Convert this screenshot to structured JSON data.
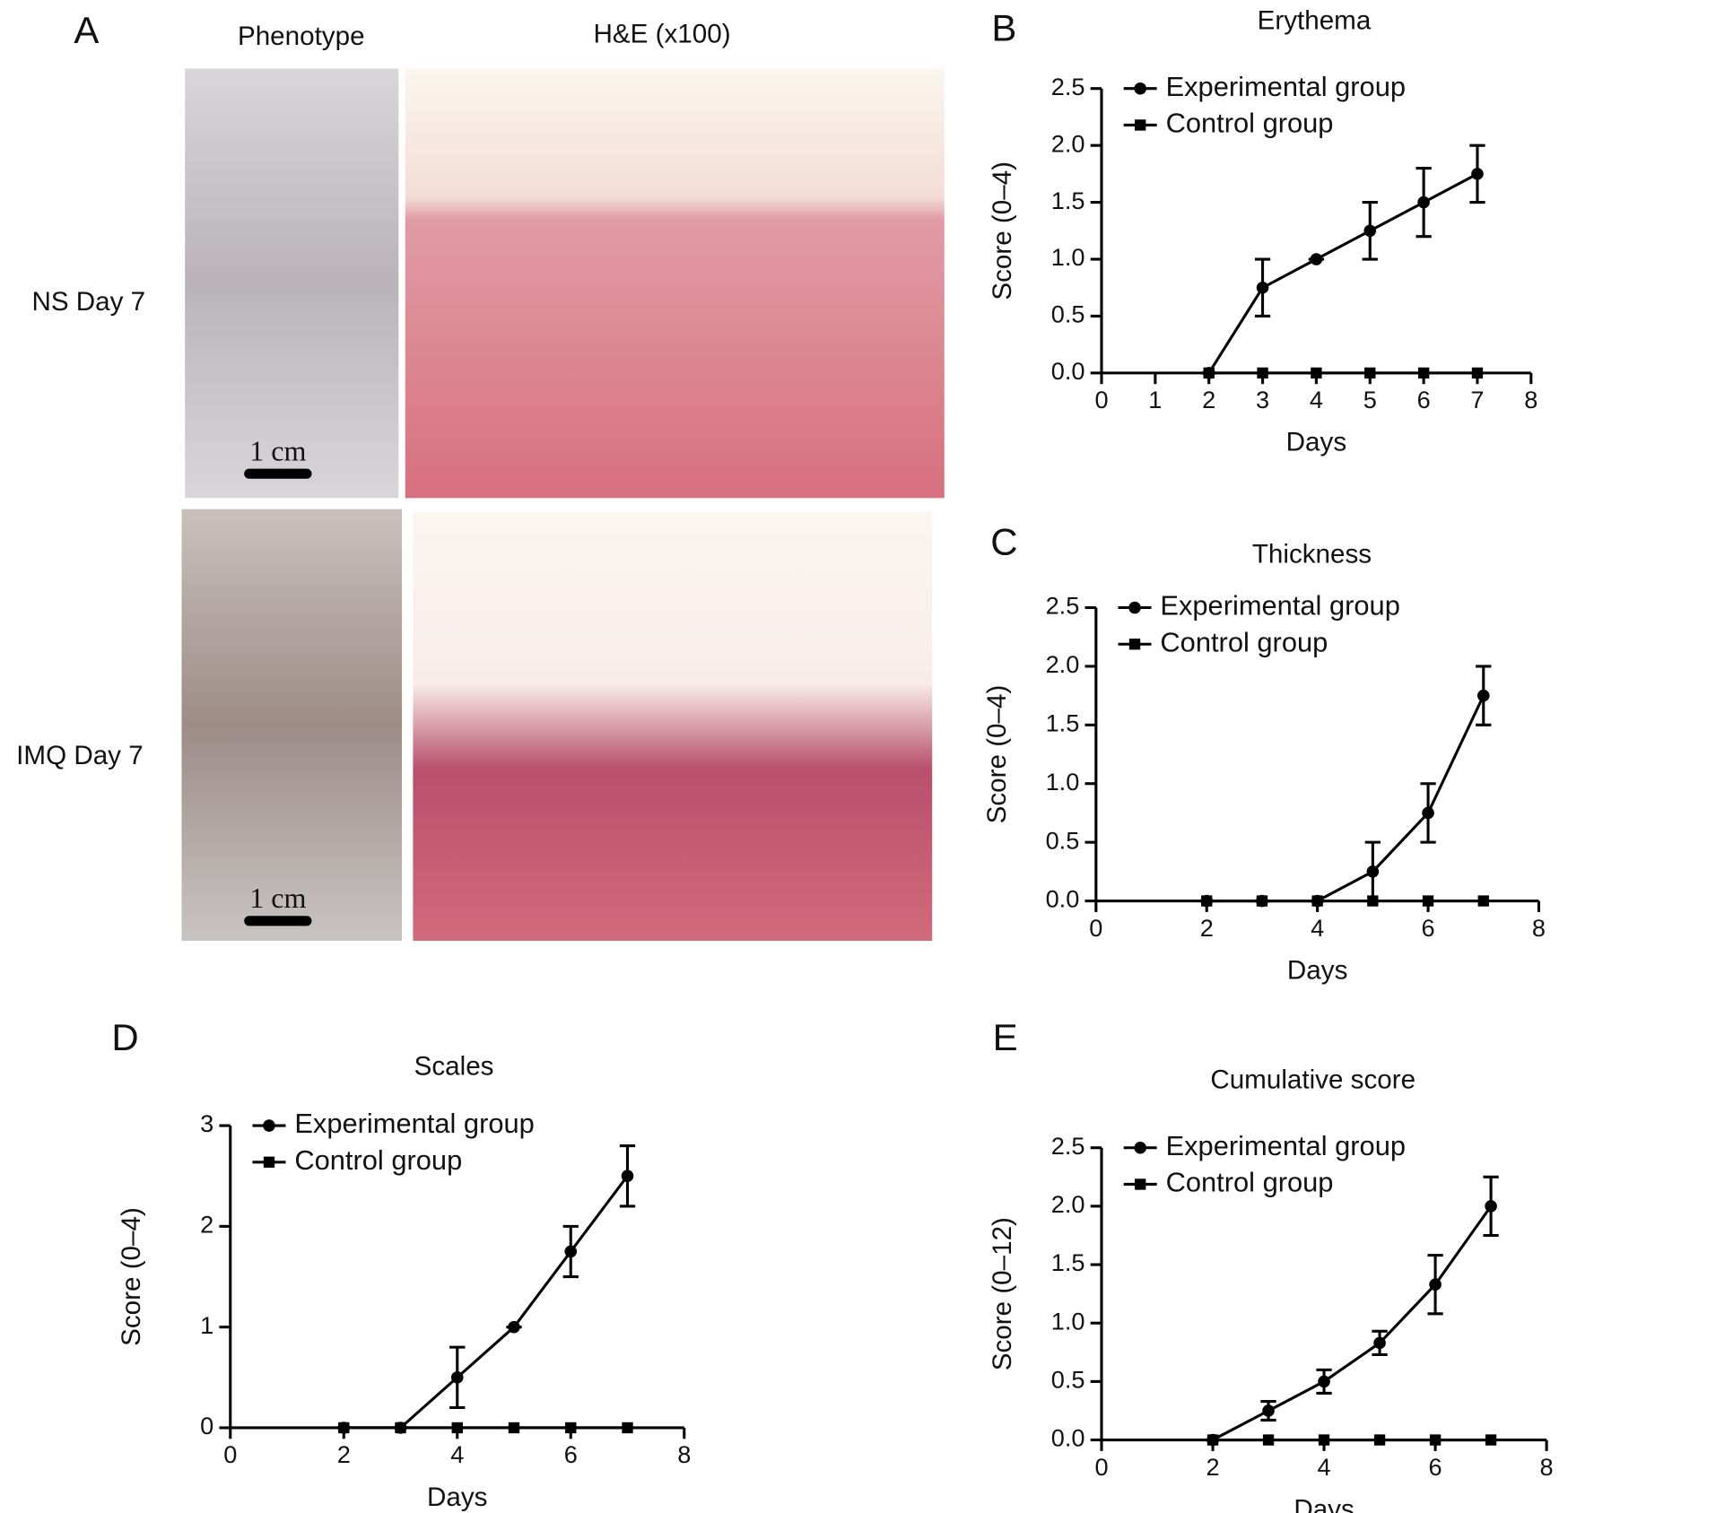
{
  "panel_a": {
    "label": "A",
    "columns": [
      "Phenotype",
      "H&E (x100)"
    ],
    "rows": [
      "NS Day 7",
      "IMQ Day 7"
    ],
    "scale_bar": "1 cm"
  },
  "chart_data": [
    {
      "type": "line",
      "label": "B",
      "title": "Erythema",
      "x_label": "Days",
      "y_label": "Score (0–4)",
      "x": [
        2,
        3,
        4,
        5,
        6,
        7
      ],
      "series": [
        {
          "name": "Experimental group",
          "color": "#000000",
          "marker": "circle",
          "values": [
            0,
            0.75,
            1.0,
            1.25,
            1.5,
            1.75
          ],
          "errors": [
            0,
            0.25,
            0,
            0.25,
            0.3,
            0.25
          ]
        },
        {
          "name": "Control group",
          "color": "#000000",
          "marker": "square",
          "values": [
            0,
            0,
            0,
            0,
            0,
            0
          ]
        }
      ],
      "xlim": [
        0,
        8
      ],
      "xticks": [
        0,
        1,
        2,
        3,
        4,
        5,
        6,
        7,
        8
      ],
      "ylim": [
        0,
        2.5
      ],
      "yticks": [
        {
          "value": 0,
          "label": "0.0"
        },
        {
          "value": 0.5,
          "label": "0.5"
        },
        {
          "value": 1,
          "label": "1.0"
        },
        {
          "value": 1.5,
          "label": "1.5"
        },
        {
          "value": 2,
          "label": "2.0"
        },
        {
          "value": 2.5,
          "label": "2.5"
        }
      ],
      "legend": "upper left",
      "grid": false
    },
    {
      "type": "line",
      "label": "C",
      "title": "Thickness",
      "x_label": "Days",
      "y_label": "Score (0–4)",
      "x": [
        2,
        3,
        4,
        5,
        6,
        7
      ],
      "series": [
        {
          "name": "Experimental group",
          "color": "#000000",
          "marker": "circle",
          "values": [
            0,
            0,
            0,
            0.25,
            0.75,
            1.75
          ],
          "errors": [
            0,
            0,
            0,
            0.25,
            0.25,
            0.25
          ]
        },
        {
          "name": "Control group",
          "color": "#000000",
          "marker": "square",
          "values": [
            0,
            0,
            0,
            0,
            0,
            0
          ]
        }
      ],
      "xlim": [
        0,
        8
      ],
      "xticks": [
        0,
        2,
        4,
        6,
        8
      ],
      "ylim": [
        0,
        2.5
      ],
      "yticks": [
        {
          "value": 0,
          "label": "0.0"
        },
        {
          "value": 0.5,
          "label": "0.5"
        },
        {
          "value": 1,
          "label": "1.0"
        },
        {
          "value": 1.5,
          "label": "1.5"
        },
        {
          "value": 2,
          "label": "2.0"
        },
        {
          "value": 2.5,
          "label": "2.5"
        }
      ],
      "legend": "upper left",
      "grid": false
    },
    {
      "type": "line",
      "label": "D",
      "title": "Scales",
      "x_label": "Days",
      "y_label": "Score (0–4)",
      "x": [
        2,
        3,
        4,
        5,
        6,
        7
      ],
      "series": [
        {
          "name": "Experimental group",
          "color": "#000000",
          "marker": "circle",
          "values": [
            0,
            0,
            0.5,
            1,
            1.75,
            2.5
          ],
          "errors": [
            0,
            0,
            0.3,
            0,
            0.25,
            0.3
          ]
        },
        {
          "name": "Control group",
          "color": "#000000",
          "marker": "square",
          "values": [
            0,
            0,
            0,
            0,
            0,
            0
          ]
        }
      ],
      "xlim": [
        0,
        8
      ],
      "xticks": [
        0,
        2,
        4,
        6,
        8
      ],
      "ylim": [
        0,
        3
      ],
      "yticks": [
        0,
        1,
        2,
        3
      ],
      "legend": "upper left",
      "grid": false
    },
    {
      "type": "line",
      "label": "E",
      "title": "Cumulative score",
      "x_label": "Days",
      "y_label": "Score (0–12)",
      "x": [
        2,
        3,
        4,
        5,
        6,
        7
      ],
      "series": [
        {
          "name": "Experimental group",
          "color": "#000000",
          "marker": "circle",
          "values": [
            0,
            0.25,
            0.5,
            0.83,
            1.33,
            2.0
          ],
          "errors": [
            0,
            0.08,
            0.1,
            0.1,
            0.25,
            0.25
          ]
        },
        {
          "name": "Control group",
          "color": "#000000",
          "marker": "square",
          "values": [
            0,
            0,
            0,
            0,
            0,
            0
          ]
        }
      ],
      "xlim": [
        0,
        8
      ],
      "xticks": [
        0,
        2,
        4,
        6,
        8
      ],
      "ylim": [
        0,
        2.5
      ],
      "yticks": [
        {
          "value": 0,
          "label": "0.0"
        },
        {
          "value": 0.5,
          "label": "0.5"
        },
        {
          "value": 1,
          "label": "1.0"
        },
        {
          "value": 1.5,
          "label": "1.5"
        },
        {
          "value": 2,
          "label": "2.0"
        },
        {
          "value": 2.5,
          "label": "2.5"
        }
      ],
      "legend": "upper left",
      "grid": false
    }
  ]
}
